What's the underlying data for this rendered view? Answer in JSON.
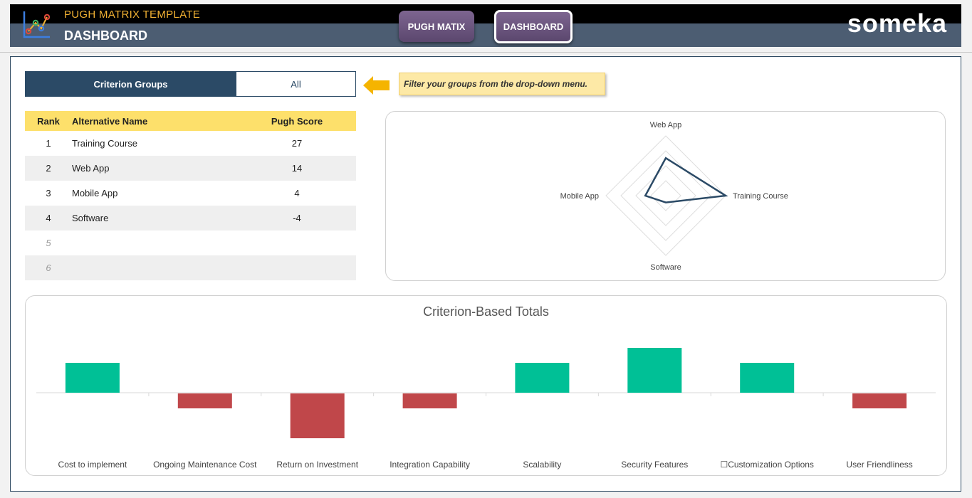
{
  "header": {
    "app_title": "PUGH MATRIX TEMPLATE",
    "page_title": "DASHBOARD",
    "nav": [
      {
        "label": "PUGH MATIX"
      },
      {
        "label": "DASHBOARD"
      }
    ],
    "brand": "someka"
  },
  "filter": {
    "label": "Criterion Groups",
    "value": "All",
    "hint": "Filter your groups from the drop-down menu."
  },
  "ranking": {
    "headers": {
      "rank": "Rank",
      "name": "Alternative Name",
      "score": "Pugh Score"
    },
    "rows": [
      {
        "rank": "1",
        "name": "Training Course",
        "score": "27"
      },
      {
        "rank": "2",
        "name": "Web App",
        "score": "14"
      },
      {
        "rank": "3",
        "name": "Mobile App",
        "score": "4"
      },
      {
        "rank": "4",
        "name": "Software",
        "score": "-4"
      },
      {
        "rank": "5",
        "name": "",
        "score": ""
      },
      {
        "rank": "6",
        "name": "",
        "score": ""
      }
    ]
  },
  "chart_data": [
    {
      "type": "radar",
      "axes": [
        "Web App",
        "Training Course",
        "Software",
        "Mobile App"
      ],
      "values": [
        14,
        27,
        -4,
        4
      ],
      "range": [
        -8,
        27
      ],
      "rings": 4,
      "line_color": "#2b4a66"
    },
    {
      "type": "bar",
      "title": "Criterion-Based Totals",
      "categories": [
        "Cost to implement",
        "Ongoing Maintenance Cost",
        "Return on Investment",
        "Integration Capability",
        "Scalability",
        "Security Features",
        "☐Customization Options",
        "User Friendliness"
      ],
      "values": [
        2,
        -1,
        -3,
        -1,
        2,
        3,
        2,
        -1
      ],
      "ylim": [
        -4,
        4
      ],
      "colors": {
        "positive": "#00c096",
        "negative": "#c0474a"
      }
    }
  ]
}
